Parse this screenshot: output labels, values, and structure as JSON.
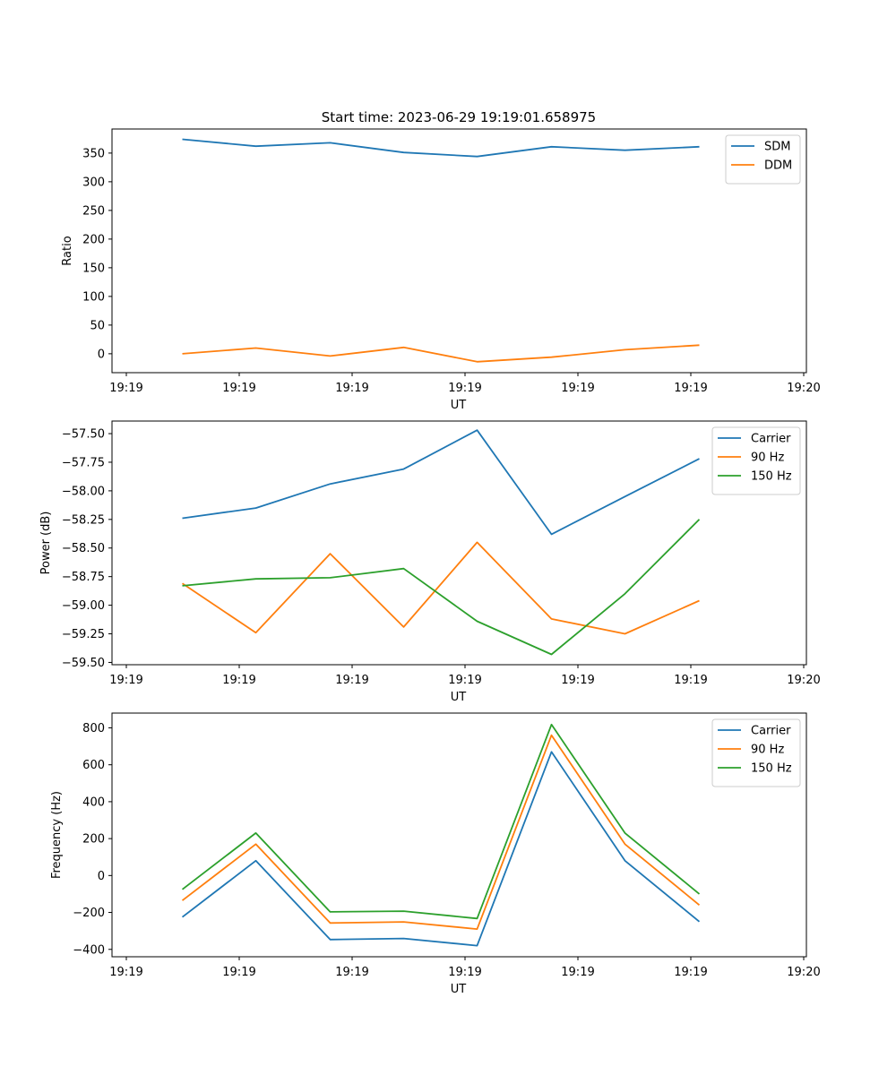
{
  "title": "Start time: 2023-06-29 19:19:01.658975",
  "colors": {
    "blue": "#1f77b4",
    "orange": "#ff7f0e",
    "green": "#2ca02c"
  },
  "chart_data": [
    {
      "type": "line",
      "xlabel": "UT",
      "ylabel": "Ratio",
      "xticklabels": [
        "19:19",
        "19:19",
        "19:19",
        "19:19",
        "19:19",
        "19:19",
        "19:19"
      ],
      "xticklabel_end": "19:20",
      "ylim": [
        -33,
        392
      ],
      "yticks": [
        0,
        50,
        100,
        150,
        200,
        250,
        300,
        350
      ],
      "legend": "top-right",
      "series": [
        {
          "name": "SDM",
          "color": "#1f77b4",
          "values": [
            374,
            362,
            368,
            351,
            344,
            361,
            355,
            361
          ]
        },
        {
          "name": "DDM",
          "color": "#ff7f0e",
          "values": [
            0,
            10,
            -4,
            11,
            -14,
            -6,
            7,
            15
          ]
        }
      ]
    },
    {
      "type": "line",
      "xlabel": "UT",
      "ylabel": "Power (dB)",
      "xticklabels": [
        "19:19",
        "19:19",
        "19:19",
        "19:19",
        "19:19",
        "19:19",
        "19:19"
      ],
      "xticklabel_end": "19:20",
      "ylim": [
        -59.52,
        -57.39
      ],
      "yticks": [
        -59.5,
        -59.25,
        -59.0,
        -58.75,
        -58.5,
        -58.25,
        -58.0,
        -57.75,
        -57.5
      ],
      "legend": "top-right",
      "series": [
        {
          "name": "Carrier",
          "color": "#1f77b4",
          "values": [
            -58.24,
            -58.15,
            -57.94,
            -57.81,
            -57.47,
            -58.38,
            -58.05,
            -57.72
          ]
        },
        {
          "name": "90 Hz",
          "color": "#ff7f0e",
          "values": [
            -58.81,
            -59.24,
            -58.55,
            -59.19,
            -58.45,
            -59.12,
            -59.25,
            -58.96
          ]
        },
        {
          "name": "150 Hz",
          "color": "#2ca02c",
          "values": [
            -58.83,
            -58.77,
            -58.76,
            -58.68,
            -59.14,
            -59.43,
            -58.9,
            -58.25
          ]
        }
      ]
    },
    {
      "type": "line",
      "xlabel": "UT",
      "ylabel": "Frequency (Hz)",
      "xticklabels": [
        "19:19",
        "19:19",
        "19:19",
        "19:19",
        "19:19",
        "19:19",
        "19:19"
      ],
      "xticklabel_end": "19:20",
      "ylim": [
        -440,
        880
      ],
      "yticks": [
        -400,
        -200,
        0,
        200,
        400,
        600,
        800
      ],
      "legend": "top-right",
      "series": [
        {
          "name": "Carrier",
          "color": "#1f77b4",
          "values": [
            -225,
            80,
            -347,
            -341,
            -380,
            670,
            80,
            -250
          ]
        },
        {
          "name": "90 Hz",
          "color": "#ff7f0e",
          "values": [
            -135,
            170,
            -257,
            -251,
            -290,
            760,
            170,
            -160
          ]
        },
        {
          "name": "150 Hz",
          "color": "#2ca02c",
          "values": [
            -75,
            230,
            -197,
            -193,
            -233,
            818,
            230,
            -100
          ]
        }
      ]
    }
  ]
}
